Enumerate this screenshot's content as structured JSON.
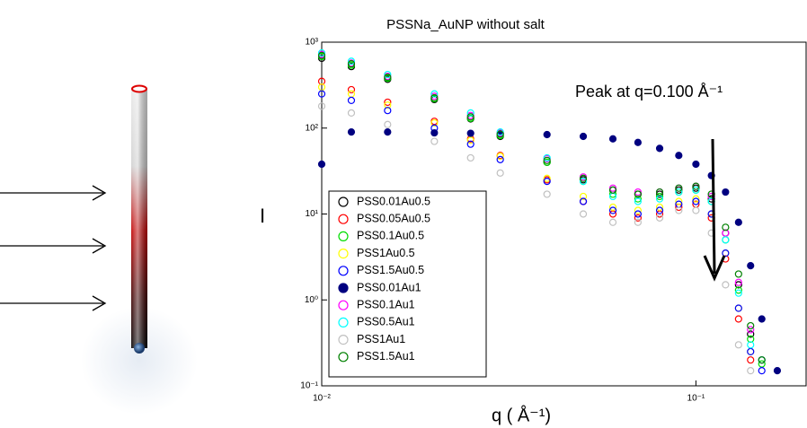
{
  "chart_data": {
    "type": "scatter",
    "title": "PSSNa_AuNP without salt",
    "x_label": "q ( Å⁻¹)",
    "y_label": "I",
    "annotation": "Peak at q=0.100 Å⁻¹",
    "x_scale": "log",
    "y_scale": "log",
    "xlim": [
      0.01,
      0.197
    ],
    "ylim": [
      0.1,
      1000
    ],
    "xticks": [
      {
        "value": 0.01,
        "label": "10⁻²"
      },
      {
        "value": 0.1,
        "label": "10⁻¹"
      }
    ],
    "yticks": [
      {
        "value": 0.1,
        "label": "10⁻¹"
      },
      {
        "value": 1,
        "label": "10⁰"
      },
      {
        "value": 10,
        "label": "10¹"
      },
      {
        "value": 100,
        "label": "10²"
      },
      {
        "value": 1000,
        "label": "10³"
      }
    ],
    "legend_position": "lower left",
    "x": [
      0.01,
      0.012,
      0.015,
      0.02,
      0.025,
      0.03,
      0.04,
      0.05,
      0.06,
      0.07,
      0.08,
      0.09,
      0.1,
      0.11,
      0.12,
      0.13,
      0.14,
      0.15,
      0.165
    ],
    "series": [
      {
        "name": "PSS0.01Au0.5",
        "color": "#000000",
        "filled": false,
        "values": [
          650,
          520,
          370,
          215,
          128,
          80,
          40,
          25,
          19,
          17,
          17,
          19,
          20,
          15,
          6,
          1.5,
          0.4,
          0.2,
          null
        ]
      },
      {
        "name": "PSS0.05Au0.5",
        "color": "#ff0000",
        "filled": false,
        "values": [
          350,
          280,
          200,
          120,
          75,
          48,
          25,
          14,
          10,
          9,
          10,
          12,
          13,
          9,
          3,
          0.6,
          0.2,
          null,
          null
        ]
      },
      {
        "name": "PSS0.1Au0.5",
        "color": "#00dd00",
        "filled": false,
        "values": [
          680,
          540,
          380,
          220,
          130,
          82,
          40,
          24,
          17,
          15,
          16,
          18,
          19,
          14,
          5,
          1.3,
          0.35,
          0.18,
          null
        ]
      },
      {
        "name": "PSS1Au0.5",
        "color": "#ffff00",
        "filled": false,
        "values": [
          300,
          250,
          185,
          115,
          72,
          47,
          26,
          16,
          12,
          11,
          12,
          14,
          15,
          10,
          3.5,
          0.8,
          0.25,
          null,
          null
        ]
      },
      {
        "name": "PSS1.5Au0.5",
        "color": "#0000ff",
        "filled": false,
        "values": [
          250,
          210,
          160,
          100,
          65,
          43,
          24,
          14,
          11,
          10,
          11,
          13,
          14,
          10,
          3.5,
          0.8,
          0.25,
          0.15,
          null
        ]
      },
      {
        "name": "PSS0.01Au1",
        "color": "#000080",
        "filled": true,
        "values": [
          38,
          90,
          90,
          88,
          87,
          86,
          84,
          80,
          75,
          68,
          58,
          48,
          38,
          28,
          18,
          8,
          2.5,
          0.6,
          0.15
        ]
      },
      {
        "name": "PSS0.1Au1",
        "color": "#ff00ff",
        "filled": false,
        "values": [
          720,
          570,
          400,
          235,
          140,
          88,
          44,
          27,
          20,
          18,
          18,
          20,
          21,
          16,
          6,
          1.6,
          0.45,
          0.2,
          null
        ]
      },
      {
        "name": "PSS0.5Au1",
        "color": "#00ffff",
        "filled": false,
        "values": [
          750,
          600,
          420,
          250,
          150,
          90,
          45,
          24,
          16,
          14,
          15,
          18,
          19,
          14,
          5,
          1.2,
          0.3,
          0.2,
          null
        ]
      },
      {
        "name": "PSS1Au1",
        "color": "#c0c0c0",
        "filled": false,
        "values": [
          180,
          150,
          110,
          70,
          45,
          30,
          17,
          10,
          8,
          8,
          9,
          11,
          11,
          6,
          1.5,
          0.3,
          0.15,
          null,
          null
        ]
      },
      {
        "name": "PSS1.5Au1",
        "color": "#008000",
        "filled": false,
        "values": [
          700,
          560,
          390,
          225,
          135,
          85,
          42,
          26,
          19,
          17,
          18,
          20,
          21,
          17,
          7,
          2,
          0.5,
          0.2,
          null
        ]
      }
    ]
  }
}
